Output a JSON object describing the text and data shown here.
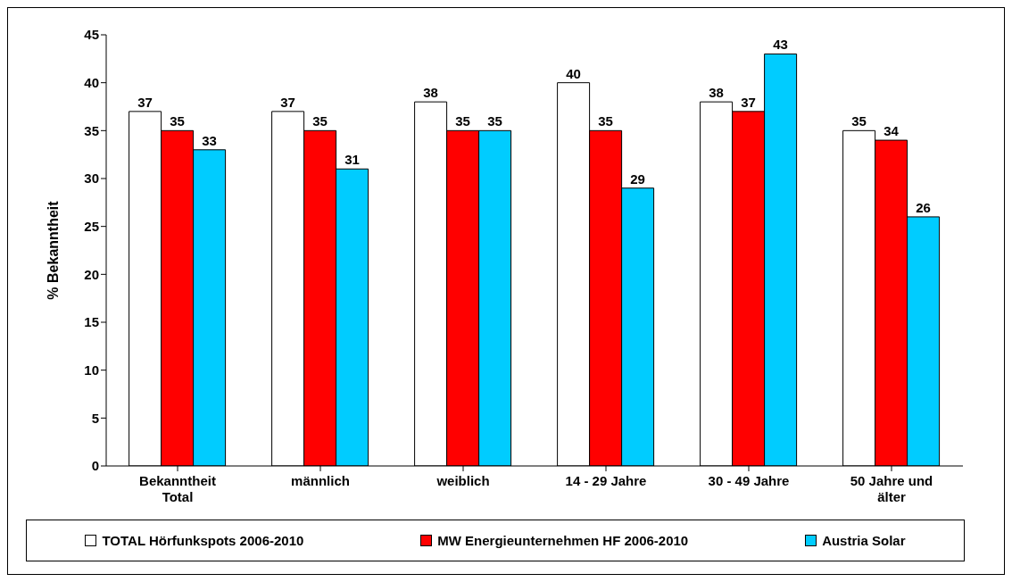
{
  "chart_data": {
    "type": "bar",
    "ylabel": "% Bekanntheit",
    "categories": [
      "Bekanntheit Total",
      "männlich",
      "weiblich",
      "14 - 29 Jahre",
      "30 - 49 Jahre",
      "50 Jahre und älter"
    ],
    "series": [
      {
        "name": "TOTAL Hörfunkspots 2006-2010",
        "color": "#ffffff",
        "values": [
          37,
          37,
          38,
          40,
          38,
          35
        ]
      },
      {
        "name": "MW Energieunternehmen HF 2006-2010",
        "color": "#ff0000",
        "values": [
          35,
          35,
          35,
          35,
          37,
          34
        ]
      },
      {
        "name": "Austria Solar",
        "color": "#00ccff",
        "values": [
          33,
          31,
          35,
          29,
          43,
          26
        ]
      }
    ],
    "ylim": [
      0,
      45
    ],
    "yticks": [
      0,
      5,
      10,
      15,
      20,
      25,
      30,
      35,
      40,
      45
    ],
    "legend": "bottom",
    "data_labels": true
  }
}
